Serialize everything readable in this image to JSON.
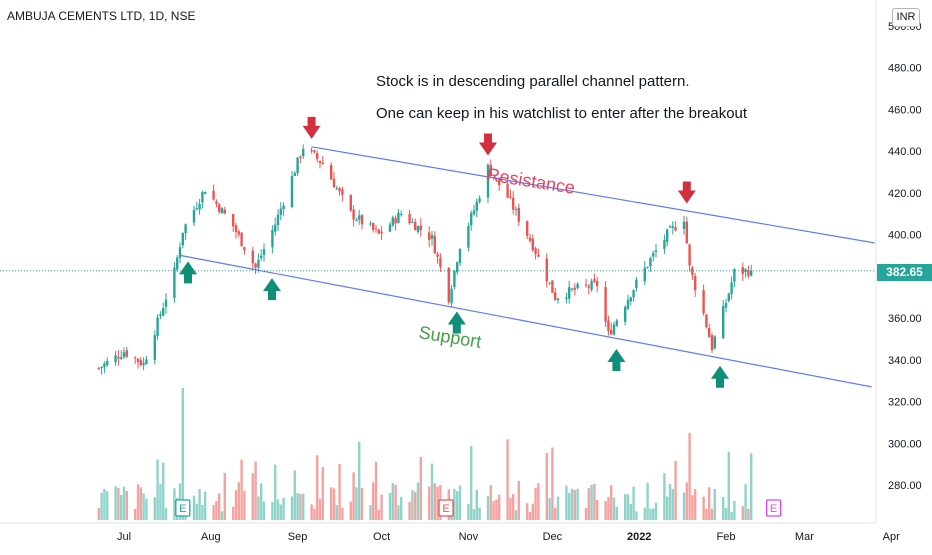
{
  "header": {
    "title": "AMBUJA CEMENTS LTD, 1D, NSE",
    "currency": "INR"
  },
  "annotations": {
    "note_line1": "Stock is in descending parallel channel pattern.",
    "note_line2": "One can keep in his watchlist to enter after the breakout",
    "resistance": "Resistance",
    "support": "Support",
    "event_marker": "E"
  },
  "colors": {
    "up": "#26a69a",
    "down": "#ef5350",
    "volume_up": "#8fd3c9",
    "volume_down": "#f4a3a1",
    "channel": "#5b7cf5",
    "resistance_text": "#e8455a",
    "support_text": "#43a047",
    "arrow_down": "#d32f3f",
    "arrow_up": "#0f8f77",
    "price_line": "#26a69a"
  },
  "chart_data": {
    "type": "candlestick",
    "symbol": "AMBUJA CEMENTS LTD",
    "interval": "1D",
    "exchange": "NSE",
    "last_price": "382.65",
    "y_axis": {
      "ticks": [
        "280.00",
        "300.00",
        "320.00",
        "340.00",
        "360.00",
        "380.00",
        "400.00",
        "420.00",
        "440.00",
        "460.00",
        "480.00",
        "500.00"
      ],
      "range": [
        262,
        512
      ]
    },
    "x_axis": {
      "ticks": [
        "Jul",
        "Aug",
        "Sep",
        "Oct",
        "Nov",
        "Dec",
        "2022",
        "Feb",
        "Mar",
        "Apr"
      ]
    },
    "price_path": [
      [
        "2021-06-22",
        336
      ],
      [
        "2021-07-01",
        344
      ],
      [
        "2021-07-08",
        338
      ],
      [
        "2021-07-19",
        382
      ],
      [
        "2021-07-22",
        402
      ],
      [
        "2021-07-30",
        422
      ],
      [
        "2021-08-09",
        404
      ],
      [
        "2021-08-17",
        384
      ],
      [
        "2021-08-24",
        405
      ],
      [
        "2021-09-03",
        442
      ],
      [
        "2021-09-10",
        434
      ],
      [
        "2021-09-20",
        410
      ],
      [
        "2021-09-30",
        400
      ],
      [
        "2021-10-08",
        410
      ],
      [
        "2021-10-19",
        398
      ],
      [
        "2021-10-25",
        370
      ],
      [
        "2021-10-29",
        395
      ],
      [
        "2021-11-04",
        415
      ],
      [
        "2021-11-08",
        432
      ],
      [
        "2021-11-15",
        418
      ],
      [
        "2021-11-24",
        395
      ],
      [
        "2021-12-02",
        370
      ],
      [
        "2021-12-10",
        374
      ],
      [
        "2021-12-17",
        376
      ],
      [
        "2021-12-21",
        352
      ],
      [
        "2021-12-29",
        372
      ],
      [
        "2022-01-05",
        388
      ],
      [
        "2022-01-11",
        400
      ],
      [
        "2022-01-17",
        408
      ],
      [
        "2022-01-19",
        384
      ],
      [
        "2022-01-24",
        362
      ],
      [
        "2022-01-27",
        346
      ],
      [
        "2022-02-02",
        372
      ],
      [
        "2022-02-04",
        382
      ],
      [
        "2022-02-10",
        382.65
      ]
    ],
    "resistance_line": [
      [
        "2021-09-06",
        442
      ],
      [
        "2022-03-26",
        396
      ]
    ],
    "support_line": [
      [
        "2021-07-21",
        390
      ],
      [
        "2022-03-25",
        327
      ]
    ],
    "swing_highs": [
      [
        "2021-09-06",
        442
      ],
      [
        "2021-11-08",
        434
      ],
      [
        "2022-01-18",
        411
      ]
    ],
    "swing_lows": [
      [
        "2021-07-21",
        390
      ],
      [
        "2021-08-20",
        382
      ],
      [
        "2021-10-25",
        366
      ],
      [
        "2021-12-21",
        348
      ],
      [
        "2022-01-27",
        340
      ]
    ],
    "earnings_events": [
      "2021-07-22",
      "2021-10-24",
      "2022-02-18"
    ],
    "volume_spikes": [
      [
        "2021-07-22",
        "high"
      ],
      [
        "2021-11-15",
        "medium"
      ],
      [
        "2022-01-19",
        "medium"
      ]
    ]
  }
}
